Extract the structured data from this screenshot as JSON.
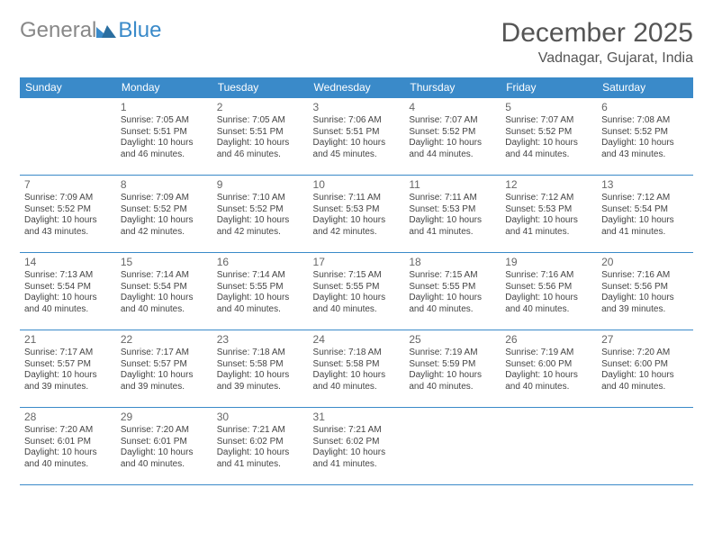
{
  "logo": {
    "text1": "General",
    "text2": "Blue"
  },
  "title": "December 2025",
  "location": "Vadnagar, Gujarat, India",
  "colors": {
    "header_bg": "#3a8ac9",
    "header_text": "#ffffff",
    "border": "#3a8ac9",
    "body_text": "#444444",
    "daynum": "#666666",
    "logo_gray": "#888888",
    "logo_blue": "#3a8ac9",
    "title_color": "#555555",
    "background": "#ffffff"
  },
  "weekdays": [
    "Sunday",
    "Monday",
    "Tuesday",
    "Wednesday",
    "Thursday",
    "Friday",
    "Saturday"
  ],
  "weeks": [
    [
      null,
      {
        "n": "1",
        "sr": "Sunrise: 7:05 AM",
        "ss": "Sunset: 5:51 PM",
        "dl": "Daylight: 10 hours and 46 minutes."
      },
      {
        "n": "2",
        "sr": "Sunrise: 7:05 AM",
        "ss": "Sunset: 5:51 PM",
        "dl": "Daylight: 10 hours and 46 minutes."
      },
      {
        "n": "3",
        "sr": "Sunrise: 7:06 AM",
        "ss": "Sunset: 5:51 PM",
        "dl": "Daylight: 10 hours and 45 minutes."
      },
      {
        "n": "4",
        "sr": "Sunrise: 7:07 AM",
        "ss": "Sunset: 5:52 PM",
        "dl": "Daylight: 10 hours and 44 minutes."
      },
      {
        "n": "5",
        "sr": "Sunrise: 7:07 AM",
        "ss": "Sunset: 5:52 PM",
        "dl": "Daylight: 10 hours and 44 minutes."
      },
      {
        "n": "6",
        "sr": "Sunrise: 7:08 AM",
        "ss": "Sunset: 5:52 PM",
        "dl": "Daylight: 10 hours and 43 minutes."
      }
    ],
    [
      {
        "n": "7",
        "sr": "Sunrise: 7:09 AM",
        "ss": "Sunset: 5:52 PM",
        "dl": "Daylight: 10 hours and 43 minutes."
      },
      {
        "n": "8",
        "sr": "Sunrise: 7:09 AM",
        "ss": "Sunset: 5:52 PM",
        "dl": "Daylight: 10 hours and 42 minutes."
      },
      {
        "n": "9",
        "sr": "Sunrise: 7:10 AM",
        "ss": "Sunset: 5:52 PM",
        "dl": "Daylight: 10 hours and 42 minutes."
      },
      {
        "n": "10",
        "sr": "Sunrise: 7:11 AM",
        "ss": "Sunset: 5:53 PM",
        "dl": "Daylight: 10 hours and 42 minutes."
      },
      {
        "n": "11",
        "sr": "Sunrise: 7:11 AM",
        "ss": "Sunset: 5:53 PM",
        "dl": "Daylight: 10 hours and 41 minutes."
      },
      {
        "n": "12",
        "sr": "Sunrise: 7:12 AM",
        "ss": "Sunset: 5:53 PM",
        "dl": "Daylight: 10 hours and 41 minutes."
      },
      {
        "n": "13",
        "sr": "Sunrise: 7:12 AM",
        "ss": "Sunset: 5:54 PM",
        "dl": "Daylight: 10 hours and 41 minutes."
      }
    ],
    [
      {
        "n": "14",
        "sr": "Sunrise: 7:13 AM",
        "ss": "Sunset: 5:54 PM",
        "dl": "Daylight: 10 hours and 40 minutes."
      },
      {
        "n": "15",
        "sr": "Sunrise: 7:14 AM",
        "ss": "Sunset: 5:54 PM",
        "dl": "Daylight: 10 hours and 40 minutes."
      },
      {
        "n": "16",
        "sr": "Sunrise: 7:14 AM",
        "ss": "Sunset: 5:55 PM",
        "dl": "Daylight: 10 hours and 40 minutes."
      },
      {
        "n": "17",
        "sr": "Sunrise: 7:15 AM",
        "ss": "Sunset: 5:55 PM",
        "dl": "Daylight: 10 hours and 40 minutes."
      },
      {
        "n": "18",
        "sr": "Sunrise: 7:15 AM",
        "ss": "Sunset: 5:55 PM",
        "dl": "Daylight: 10 hours and 40 minutes."
      },
      {
        "n": "19",
        "sr": "Sunrise: 7:16 AM",
        "ss": "Sunset: 5:56 PM",
        "dl": "Daylight: 10 hours and 40 minutes."
      },
      {
        "n": "20",
        "sr": "Sunrise: 7:16 AM",
        "ss": "Sunset: 5:56 PM",
        "dl": "Daylight: 10 hours and 39 minutes."
      }
    ],
    [
      {
        "n": "21",
        "sr": "Sunrise: 7:17 AM",
        "ss": "Sunset: 5:57 PM",
        "dl": "Daylight: 10 hours and 39 minutes."
      },
      {
        "n": "22",
        "sr": "Sunrise: 7:17 AM",
        "ss": "Sunset: 5:57 PM",
        "dl": "Daylight: 10 hours and 39 minutes."
      },
      {
        "n": "23",
        "sr": "Sunrise: 7:18 AM",
        "ss": "Sunset: 5:58 PM",
        "dl": "Daylight: 10 hours and 39 minutes."
      },
      {
        "n": "24",
        "sr": "Sunrise: 7:18 AM",
        "ss": "Sunset: 5:58 PM",
        "dl": "Daylight: 10 hours and 40 minutes."
      },
      {
        "n": "25",
        "sr": "Sunrise: 7:19 AM",
        "ss": "Sunset: 5:59 PM",
        "dl": "Daylight: 10 hours and 40 minutes."
      },
      {
        "n": "26",
        "sr": "Sunrise: 7:19 AM",
        "ss": "Sunset: 6:00 PM",
        "dl": "Daylight: 10 hours and 40 minutes."
      },
      {
        "n": "27",
        "sr": "Sunrise: 7:20 AM",
        "ss": "Sunset: 6:00 PM",
        "dl": "Daylight: 10 hours and 40 minutes."
      }
    ],
    [
      {
        "n": "28",
        "sr": "Sunrise: 7:20 AM",
        "ss": "Sunset: 6:01 PM",
        "dl": "Daylight: 10 hours and 40 minutes."
      },
      {
        "n": "29",
        "sr": "Sunrise: 7:20 AM",
        "ss": "Sunset: 6:01 PM",
        "dl": "Daylight: 10 hours and 40 minutes."
      },
      {
        "n": "30",
        "sr": "Sunrise: 7:21 AM",
        "ss": "Sunset: 6:02 PM",
        "dl": "Daylight: 10 hours and 41 minutes."
      },
      {
        "n": "31",
        "sr": "Sunrise: 7:21 AM",
        "ss": "Sunset: 6:02 PM",
        "dl": "Daylight: 10 hours and 41 minutes."
      },
      null,
      null,
      null
    ]
  ]
}
